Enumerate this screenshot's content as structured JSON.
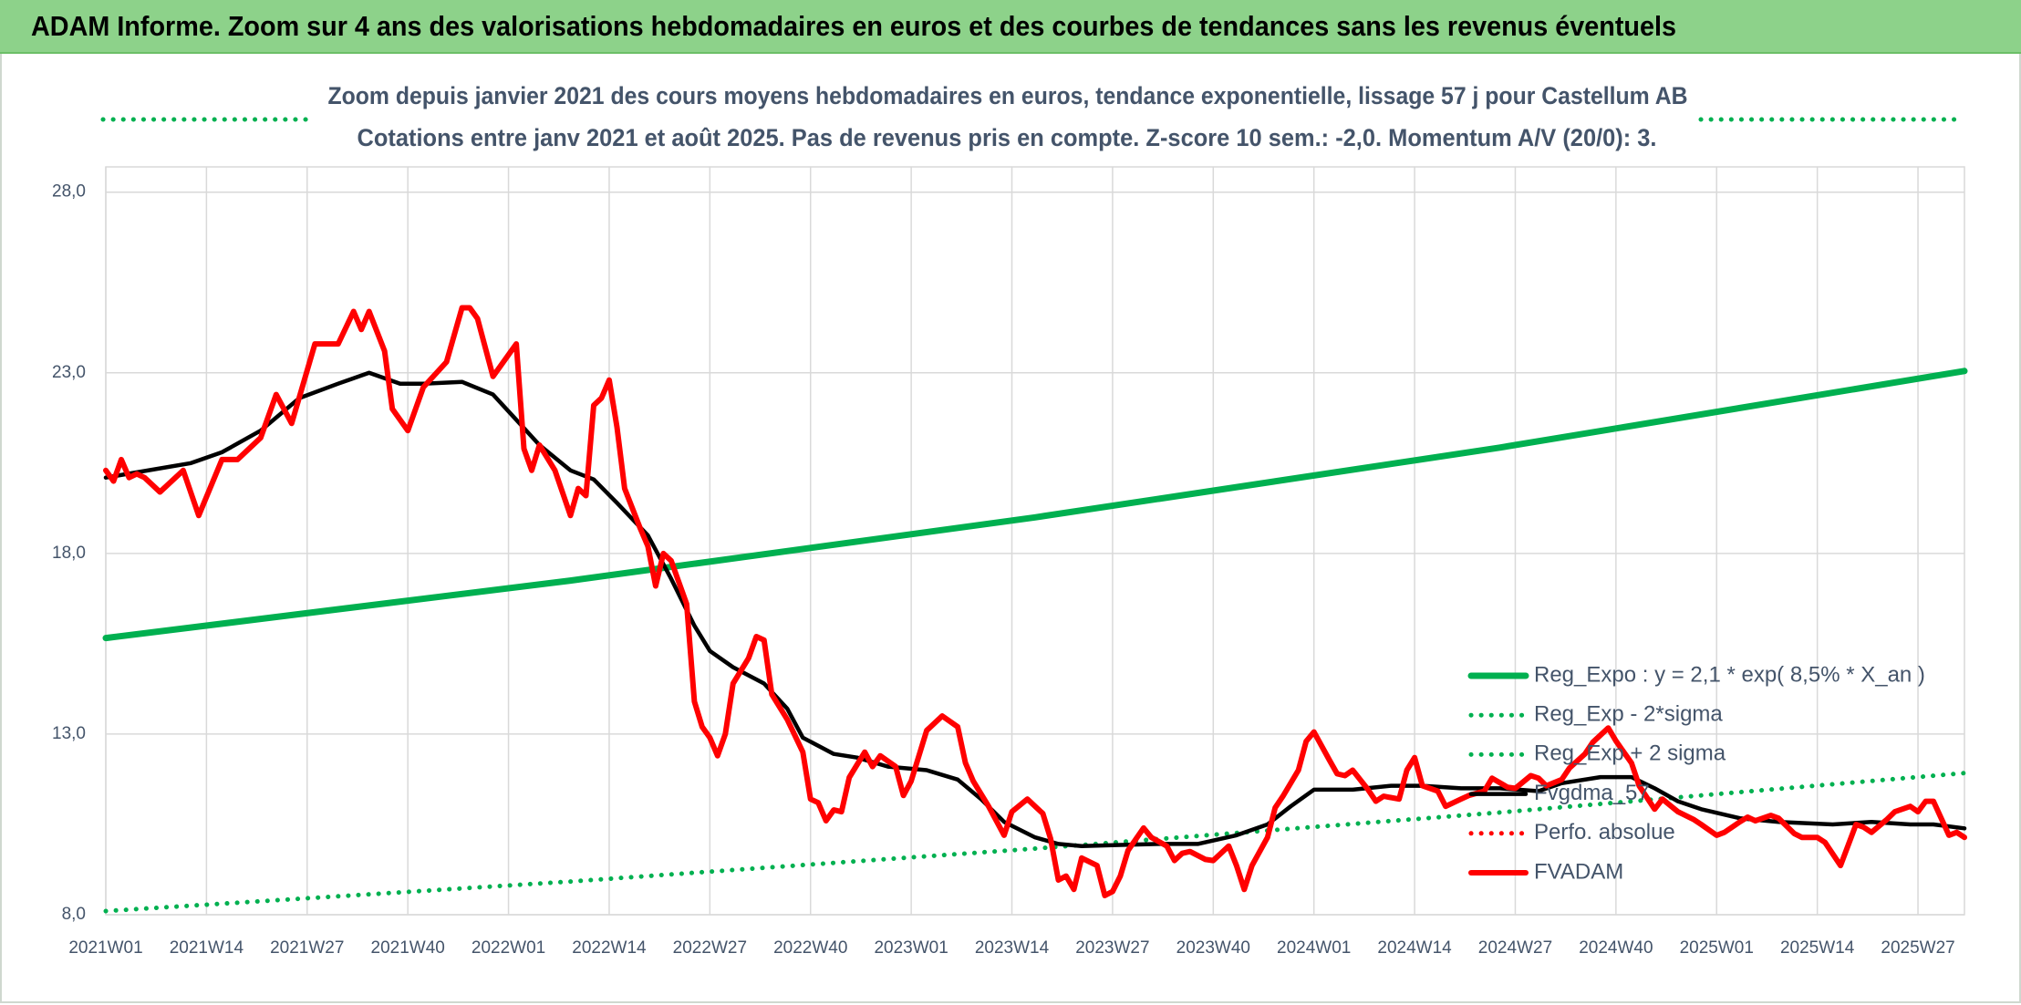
{
  "chart_data": {
    "type": "line",
    "title": "ADAM Informe. Zoom sur 4 ans des valorisations hebdomadaires en euros et des courbes de tendances sans les revenus éventuels",
    "subtitle": [
      "Zoom depuis janvier 2021 des cours moyens hebdomadaires en euros, tendance exponentielle, lissage 57 j pour Castellum AB",
      "Cotations entre janv 2021 et août 2025. Pas de revenus pris en compte. Z-score 10 sem.: -2,0. Momentum A/V (20/0): 3."
    ],
    "xlim": [
      0,
      240
    ],
    "xticks": [
      {
        "value": 0,
        "label": "2021W01"
      },
      {
        "value": 13,
        "label": "2021W14"
      },
      {
        "value": 26,
        "label": "2021W27"
      },
      {
        "value": 39,
        "label": "2021W40"
      },
      {
        "value": 52,
        "label": "2022W01"
      },
      {
        "value": 65,
        "label": "2022W14"
      },
      {
        "value": 78,
        "label": "2022W27"
      },
      {
        "value": 91,
        "label": "2022W40"
      },
      {
        "value": 104,
        "label": "2023W01"
      },
      {
        "value": 117,
        "label": "2023W14"
      },
      {
        "value": 130,
        "label": "2023W27"
      },
      {
        "value": 143,
        "label": "2023W40"
      },
      {
        "value": 156,
        "label": "2024W01"
      },
      {
        "value": 169,
        "label": "2024W14"
      },
      {
        "value": 182,
        "label": "2024W27"
      },
      {
        "value": 195,
        "label": "2024W40"
      },
      {
        "value": 208,
        "label": "2025W01"
      },
      {
        "value": 221,
        "label": "2025W14"
      },
      {
        "value": 234,
        "label": "2025W27"
      }
    ],
    "ylim": [
      8,
      28.7
    ],
    "yticks": [
      {
        "value": 8,
        "label": "8,0"
      },
      {
        "value": 13,
        "label": "13,0"
      },
      {
        "value": 18,
        "label": "18,0"
      },
      {
        "value": 23,
        "label": "23,0"
      },
      {
        "value": 28,
        "label": "28,0"
      }
    ],
    "grid": true,
    "series": [
      {
        "name": "Reg_Expo : y = 2,1 * exp( 8,5% *  X_an )",
        "color": "#00b050",
        "style": "solid",
        "x": [
          0,
          60,
          120,
          180,
          240
        ],
        "values": [
          15.66,
          17.25,
          19.0,
          20.93,
          23.05
        ]
      },
      {
        "name": "Reg_Exp - 2*sigma",
        "color": "#00b050",
        "style": "dotted",
        "x": [
          0,
          60,
          120,
          180,
          240
        ],
        "values": [
          8.1,
          8.92,
          9.83,
          10.83,
          11.92
        ]
      },
      {
        "name": "Reg_Exp + 2 sigma",
        "color": "#00b050",
        "style": "dotted"
      },
      {
        "name": "Fvgdma_57",
        "color": "#000000",
        "style": "solid",
        "x": [
          0,
          11,
          15,
          20,
          25,
          30,
          34,
          38,
          41,
          46,
          50,
          53,
          56,
          60,
          63,
          66,
          70,
          73,
          76,
          78,
          81,
          85,
          88,
          90,
          94,
          97,
          101,
          106,
          110,
          113,
          116,
          120,
          123,
          126,
          131,
          136,
          141,
          146,
          150,
          153,
          156,
          161,
          166,
          170,
          175,
          180,
          185,
          188,
          193,
          197,
          200,
          203,
          206,
          211,
          216,
          223,
          228,
          233,
          236,
          240
        ],
        "values": [
          20.1,
          20.5,
          20.8,
          21.4,
          22.3,
          22.7,
          23.0,
          22.7,
          22.7,
          22.75,
          22.4,
          21.7,
          21.0,
          20.3,
          20.05,
          19.4,
          18.5,
          17.3,
          16.0,
          15.3,
          14.85,
          14.4,
          13.7,
          12.9,
          12.45,
          12.35,
          12.1,
          12.0,
          11.74,
          11.2,
          10.57,
          10.14,
          9.96,
          9.9,
          9.93,
          9.96,
          9.96,
          10.2,
          10.5,
          11.0,
          11.46,
          11.46,
          11.57,
          11.57,
          11.5,
          11.5,
          11.42,
          11.64,
          11.81,
          11.81,
          11.5,
          11.14,
          10.92,
          10.67,
          10.57,
          10.5,
          10.57,
          10.5,
          10.5,
          10.39
        ]
      },
      {
        "name": "Perfo. absolue",
        "color": "#ff0000",
        "style": "dotted"
      },
      {
        "name": "FVADAM",
        "color": "#ff0000",
        "style": "solid",
        "x": [
          0,
          1,
          2,
          3,
          4,
          5,
          7,
          10,
          12,
          15,
          17,
          20,
          22,
          24,
          27,
          30,
          32,
          33,
          34,
          36,
          37,
          39,
          41,
          44,
          46,
          47,
          48,
          50,
          53,
          54,
          55,
          56,
          58,
          60,
          61,
          62,
          63,
          64,
          65,
          66,
          67,
          69,
          70,
          71,
          72,
          73,
          75,
          76,
          77,
          78,
          79,
          80,
          81,
          83,
          84,
          85,
          86,
          88,
          90,
          91,
          92,
          93,
          94,
          95,
          96,
          98,
          99,
          100,
          102,
          103,
          104,
          106,
          108,
          110,
          111,
          112,
          114,
          116,
          117,
          119,
          121,
          122,
          123,
          124,
          125,
          126,
          128,
          129,
          130,
          131,
          132,
          134,
          135,
          137,
          138,
          139,
          140,
          142,
          143,
          145,
          146,
          147,
          148,
          150,
          151,
          152,
          154,
          155,
          156,
          158,
          159,
          160,
          161,
          163,
          164,
          165,
          167,
          168,
          169,
          170,
          172,
          173,
          175,
          176,
          178,
          179,
          181,
          182,
          184,
          185,
          186,
          188,
          189,
          191,
          192,
          194,
          195,
          197,
          198,
          200,
          201,
          203,
          205,
          206,
          208,
          209,
          211,
          212,
          213,
          215,
          216,
          218,
          219,
          221,
          222,
          224,
          226,
          227,
          228,
          230,
          231,
          233,
          234,
          235,
          236,
          238,
          239,
          240
        ],
        "values": [
          20.3,
          20.0,
          20.6,
          20.1,
          20.2,
          20.1,
          19.7,
          20.3,
          19.05,
          20.6,
          20.6,
          21.2,
          22.4,
          21.6,
          23.8,
          23.8,
          24.7,
          24.2,
          24.7,
          23.6,
          22.0,
          21.4,
          22.6,
          23.3,
          24.8,
          24.8,
          24.5,
          22.9,
          23.8,
          20.9,
          20.3,
          21.0,
          20.3,
          19.05,
          19.8,
          19.6,
          22.1,
          22.3,
          22.8,
          21.5,
          19.8,
          18.7,
          18.2,
          17.1,
          18.0,
          17.8,
          16.6,
          13.9,
          13.2,
          12.9,
          12.4,
          13.0,
          14.4,
          15.1,
          15.7,
          15.6,
          14.1,
          13.4,
          12.5,
          11.2,
          11.1,
          10.6,
          10.9,
          10.85,
          11.8,
          12.5,
          12.1,
          12.4,
          12.1,
          11.3,
          11.7,
          13.1,
          13.5,
          13.2,
          12.2,
          11.7,
          11.0,
          10.2,
          10.85,
          11.2,
          10.8,
          10.1,
          8.96,
          9.07,
          8.7,
          9.57,
          9.36,
          8.53,
          8.64,
          9.07,
          9.78,
          10.4,
          10.14,
          9.9,
          9.5,
          9.7,
          9.75,
          9.53,
          9.5,
          9.9,
          9.36,
          8.7,
          9.36,
          10.14,
          10.96,
          11.28,
          12.0,
          12.8,
          13.06,
          12.28,
          11.9,
          11.85,
          12.0,
          11.46,
          11.14,
          11.28,
          11.2,
          12.0,
          12.35,
          11.57,
          11.42,
          11.0,
          11.2,
          11.3,
          11.42,
          11.78,
          11.53,
          11.5,
          11.85,
          11.78,
          11.57,
          11.74,
          12.06,
          12.45,
          12.77,
          13.17,
          12.81,
          12.2,
          11.57,
          10.92,
          11.2,
          10.85,
          10.64,
          10.5,
          10.2,
          10.28,
          10.57,
          10.7,
          10.6,
          10.75,
          10.67,
          10.25,
          10.14,
          10.14,
          10.0,
          9.36,
          10.5,
          10.42,
          10.28,
          10.64,
          10.85,
          11.0,
          10.85,
          11.14,
          11.14,
          10.2,
          10.28,
          10.14
        ]
      }
    ]
  }
}
